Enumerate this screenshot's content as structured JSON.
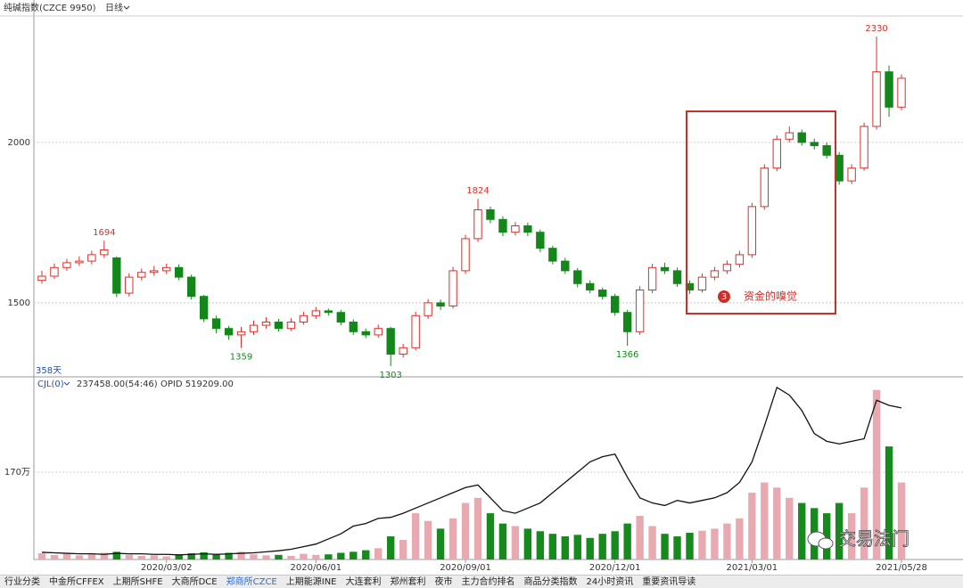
{
  "header": {
    "title": "纯碱指数(CZCE 9950)",
    "period": "日线",
    "days": "358天"
  },
  "tabs": [
    "行业分类",
    "中金所CFFEX",
    "上期所SHFE",
    "大商所DCE",
    "郑商所CZCE",
    "上期能源INE",
    "大连套利",
    "郑州套利",
    "夜市",
    "主力合约排名",
    "商品分类指数",
    "24小时资讯",
    "重要资讯导读"
  ],
  "active_tab": 4,
  "watermark": "交易法门",
  "highlight": {
    "number": "3",
    "text": "资金的嗅觉"
  },
  "chart_data": [
    {
      "type": "candlestick",
      "up_color": "#d9302b",
      "down_color": "#13871a",
      "xlim": [
        -0.5,
        69.5
      ],
      "ylim": [
        1272,
        2394
      ],
      "yticks": [
        1500,
        2000
      ],
      "grid": true,
      "open": [
        1570,
        1583,
        1610,
        1625,
        1630,
        1650,
        1640,
        1530,
        1580,
        1595,
        1600,
        1610,
        1580,
        1520,
        1450,
        1420,
        1400,
        1410,
        1430,
        1440,
        1420,
        1440,
        1460,
        1475,
        1470,
        1440,
        1410,
        1400,
        1420,
        1340,
        1360,
        1460,
        1500,
        1490,
        1600,
        1700,
        1790,
        1760,
        1720,
        1740,
        1720,
        1670,
        1630,
        1600,
        1560,
        1540,
        1520,
        1470,
        1410,
        1540,
        1610,
        1600,
        1560,
        1540,
        1580,
        1600,
        1620,
        1650,
        1800,
        1920,
        2010,
        2030,
        2000,
        1990,
        1960,
        1880,
        1920,
        2050,
        2220,
        2110
      ],
      "high": [
        1600,
        1622,
        1637,
        1645,
        1662,
        1694,
        1645,
        1592,
        1607,
        1615,
        1622,
        1620,
        1588,
        1525,
        1460,
        1428,
        1425,
        1445,
        1455,
        1450,
        1452,
        1472,
        1487,
        1482,
        1478,
        1448,
        1420,
        1432,
        1425,
        1372,
        1472,
        1512,
        1510,
        1612,
        1712,
        1824,
        1800,
        1770,
        1752,
        1750,
        1728,
        1678,
        1640,
        1608,
        1570,
        1548,
        1528,
        1478,
        1552,
        1622,
        1625,
        1610,
        1570,
        1592,
        1612,
        1632,
        1662,
        1812,
        1932,
        2022,
        2050,
        2040,
        2012,
        2000,
        1970,
        1932,
        2062,
        2330,
        2240,
        2212
      ],
      "low": [
        1560,
        1575,
        1600,
        1615,
        1620,
        1640,
        1518,
        1520,
        1570,
        1585,
        1590,
        1570,
        1510,
        1440,
        1405,
        1385,
        1359,
        1400,
        1420,
        1410,
        1412,
        1432,
        1450,
        1460,
        1430,
        1400,
        1390,
        1392,
        1303,
        1330,
        1352,
        1450,
        1478,
        1482,
        1590,
        1690,
        1748,
        1708,
        1710,
        1708,
        1658,
        1620,
        1590,
        1548,
        1530,
        1510,
        1460,
        1366,
        1400,
        1530,
        1590,
        1550,
        1528,
        1532,
        1570,
        1590,
        1610,
        1640,
        1790,
        1910,
        2000,
        1990,
        1978,
        1950,
        1868,
        1870,
        1912,
        2040,
        2080,
        2100
      ],
      "close": [
        1583,
        1610,
        1625,
        1630,
        1650,
        1665,
        1530,
        1580,
        1595,
        1600,
        1610,
        1580,
        1520,
        1450,
        1420,
        1400,
        1410,
        1430,
        1440,
        1420,
        1440,
        1460,
        1475,
        1470,
        1440,
        1410,
        1400,
        1420,
        1340,
        1360,
        1460,
        1500,
        1490,
        1600,
        1700,
        1790,
        1760,
        1720,
        1740,
        1720,
        1670,
        1630,
        1600,
        1560,
        1540,
        1520,
        1470,
        1410,
        1540,
        1610,
        1600,
        1560,
        1540,
        1580,
        1600,
        1620,
        1650,
        1800,
        1920,
        2010,
        2030,
        2000,
        1990,
        1960,
        1880,
        1920,
        2050,
        2220,
        2110,
        2200
      ],
      "high_labels": [
        1694,
        1824,
        2330
      ],
      "low_labels": [
        1359,
        1303,
        1366
      ]
    },
    {
      "type": "volume",
      "label": "CJL(0)",
      "info": "237458.00(54:46)",
      "opid": "OPID 519209.00",
      "up_color": "#e9a9b0",
      "down_color": "#168a1c",
      "line_color": "#111111",
      "xlim": [
        -0.5,
        69.5
      ],
      "ylim": [
        0,
        3520000
      ],
      "yticks": [
        {
          "value": 1700000,
          "label": "170万"
        }
      ],
      "grid": true,
      "xticks": [
        {
          "value": 10,
          "label": "2020/03/02"
        },
        {
          "value": 22,
          "label": "2020/06/01"
        },
        {
          "value": 34,
          "label": "2020/09/01"
        },
        {
          "value": 46,
          "label": "2020/12/01"
        },
        {
          "value": 57,
          "label": "2021/03/01"
        },
        {
          "value": 69,
          "label": "2021/05/28"
        }
      ],
      "volume": [
        120000,
        90000,
        110000,
        80000,
        100000,
        130000,
        150000,
        90000,
        70000,
        80000,
        60000,
        90000,
        120000,
        140000,
        110000,
        130000,
        150000,
        100000,
        80000,
        90000,
        70000,
        110000,
        90000,
        100000,
        130000,
        150000,
        180000,
        220000,
        450000,
        380000,
        900000,
        750000,
        600000,
        800000,
        1100000,
        1200000,
        900000,
        700000,
        650000,
        600000,
        550000,
        500000,
        450000,
        480000,
        420000,
        500000,
        550000,
        700000,
        850000,
        650000,
        500000,
        450000,
        520000,
        560000,
        600000,
        700000,
        800000,
        1300000,
        1500000,
        1400000,
        1200000,
        1100000,
        1000000,
        900000,
        1100000,
        900000,
        1400000,
        3300000,
        2200000,
        1500000
      ],
      "open_interest": [
        140000,
        130000,
        120000,
        110000,
        110000,
        100000,
        120000,
        110000,
        110000,
        100000,
        100000,
        90000,
        100000,
        110000,
        100000,
        110000,
        120000,
        130000,
        150000,
        170000,
        200000,
        250000,
        300000,
        400000,
        500000,
        650000,
        700000,
        800000,
        820000,
        900000,
        1000000,
        1100000,
        1200000,
        1300000,
        1400000,
        1450000,
        1200000,
        950000,
        900000,
        1000000,
        1100000,
        1300000,
        1500000,
        1700000,
        1900000,
        2000000,
        2050000,
        1600000,
        1200000,
        1100000,
        1050000,
        1150000,
        1100000,
        1150000,
        1200000,
        1300000,
        1500000,
        1900000,
        2600000,
        3350000,
        3200000,
        2900000,
        2450000,
        2300000,
        2250000,
        2300000,
        2350000,
        3100000,
        3000000,
        2950000
      ]
    }
  ]
}
